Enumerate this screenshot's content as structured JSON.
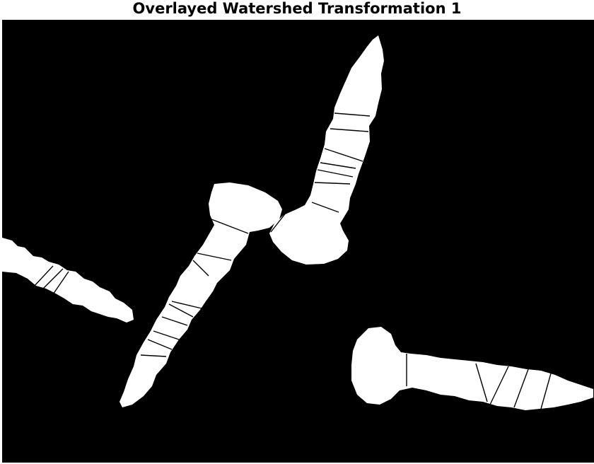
{
  "figure": {
    "title": "Overlayed Watershed Transformation 1"
  },
  "colors": {
    "background": "#000000",
    "object": "#ffffff",
    "watershed_line": "#000000",
    "page": "#ffffff"
  },
  "objects": [
    {
      "name": "screw-upper-right"
    },
    {
      "name": "screw-diagonal-center"
    },
    {
      "name": "screw-left-edge"
    },
    {
      "name": "screw-lower-right"
    }
  ]
}
